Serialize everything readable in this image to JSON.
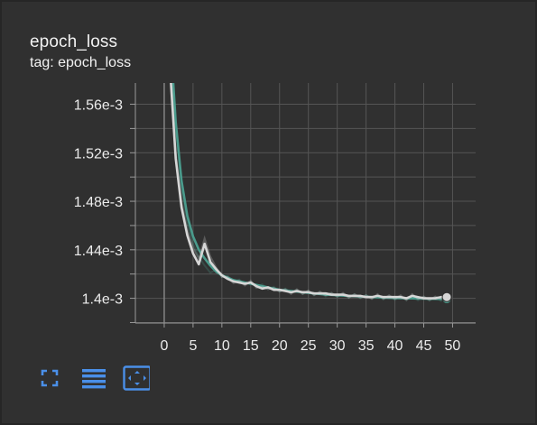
{
  "card": {
    "title": "epoch_loss",
    "subtitle": "tag: epoch_loss"
  },
  "toolbar": {
    "icons": [
      "fullscreen-icon",
      "toggle-log-scale-icon",
      "fit-domain-icon"
    ]
  },
  "colors": {
    "background": "#303030",
    "grid": "#555555",
    "axis": "#9a9a9a",
    "text": "#ececec",
    "series_train": "#4a9b8c",
    "series_validation": "#d6d6d6",
    "toolbar_icon": "#4a8fe8"
  },
  "chart_data": {
    "type": "line",
    "title": "epoch_loss",
    "subtitle": "tag: epoch_loss",
    "xlabel": "",
    "ylabel": "",
    "xlim": [
      -5,
      54
    ],
    "ylim": [
      1.3796,
      1.5775
    ],
    "y_unit_suffix": "e-3",
    "x_ticks": [
      0,
      5,
      10,
      15,
      20,
      25,
      30,
      35,
      40,
      45,
      50
    ],
    "y_ticks": [
      1.4,
      1.44,
      1.48,
      1.52,
      1.56
    ],
    "y_tick_labels": [
      "1.4e-3",
      "1.44e-3",
      "1.48e-3",
      "1.52e-3",
      "1.56e-3"
    ],
    "grid": true,
    "series": [
      {
        "color": "#4a9b8c",
        "x": [
          1,
          2,
          3,
          4,
          5,
          6,
          7,
          8,
          9,
          10,
          11,
          12,
          13,
          14,
          15,
          16,
          17,
          18,
          19,
          20,
          21,
          22,
          23,
          24,
          25,
          26,
          27,
          28,
          29,
          30,
          31,
          32,
          33,
          34,
          35,
          36,
          37,
          38,
          39,
          40,
          41,
          42,
          43,
          44,
          45,
          46,
          47,
          48,
          49
        ],
        "values": [
          1.62,
          1.545,
          1.497,
          1.468,
          1.451,
          1.44,
          1.433,
          1.427,
          1.422,
          1.419,
          1.417,
          1.415,
          1.414,
          1.413,
          1.412,
          1.411,
          1.41,
          1.409,
          1.408,
          1.407,
          1.4065,
          1.406,
          1.4055,
          1.405,
          1.4045,
          1.404,
          1.4035,
          1.403,
          1.4028,
          1.4025,
          1.4022,
          1.402,
          1.4018,
          1.4015,
          1.4012,
          1.401,
          1.4008,
          1.4006,
          1.4004,
          1.4002,
          1.4001,
          1.4,
          1.3999,
          1.3998,
          1.3997,
          1.3996,
          1.3995,
          1.3994,
          1.3993
        ]
      },
      {
        "color": "#d6d6d6",
        "x": [
          1,
          2,
          3,
          4,
          5,
          6,
          7,
          8,
          9,
          10,
          11,
          12,
          13,
          14,
          15,
          16,
          17,
          18,
          19,
          20,
          21,
          22,
          23,
          24,
          25,
          26,
          27,
          28,
          29,
          30,
          31,
          32,
          33,
          34,
          35,
          36,
          37,
          38,
          39,
          40,
          41,
          42,
          43,
          44,
          45,
          46,
          47,
          48,
          49
        ],
        "values": [
          1.59,
          1.515,
          1.475,
          1.452,
          1.437,
          1.428,
          1.445,
          1.43,
          1.424,
          1.419,
          1.416,
          1.414,
          1.413,
          1.412,
          1.413,
          1.41,
          1.408,
          1.409,
          1.407,
          1.407,
          1.406,
          1.405,
          1.406,
          1.405,
          1.405,
          1.404,
          1.404,
          1.404,
          1.403,
          1.403,
          1.403,
          1.402,
          1.402,
          1.402,
          1.401,
          1.401,
          1.402,
          1.401,
          1.401,
          1.401,
          1.401,
          1.4,
          1.402,
          1.401,
          1.4,
          1.4,
          1.4,
          1.401,
          1.401
        ]
      }
    ]
  }
}
